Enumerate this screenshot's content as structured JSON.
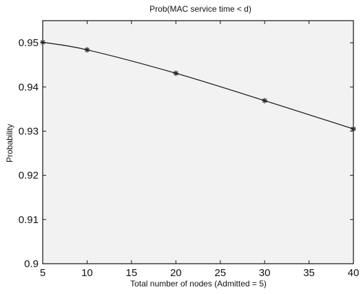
{
  "chart_data": {
    "type": "line",
    "title": "Prob(MAC service time < d)",
    "xlabel": "Total number of nodes (Admitted = 5)",
    "ylabel": "Probability",
    "xlim": [
      5,
      40
    ],
    "ylim": [
      0.9,
      0.955
    ],
    "xticks": [
      5,
      10,
      15,
      20,
      25,
      30,
      35,
      40
    ],
    "yticks": [
      0.9,
      0.91,
      0.92,
      0.93,
      0.94,
      0.95
    ],
    "ytick_labels": [
      "0.9",
      "0.91",
      "0.92",
      "0.93",
      "0.94",
      "0.95"
    ],
    "grid": false,
    "legend": "none",
    "series": [
      {
        "marker": "asterisk",
        "color": "#222222",
        "x": [
          5,
          10,
          20,
          30,
          40
        ],
        "y": [
          0.9501,
          0.9484,
          0.9431,
          0.9369,
          0.9305
        ]
      }
    ]
  }
}
